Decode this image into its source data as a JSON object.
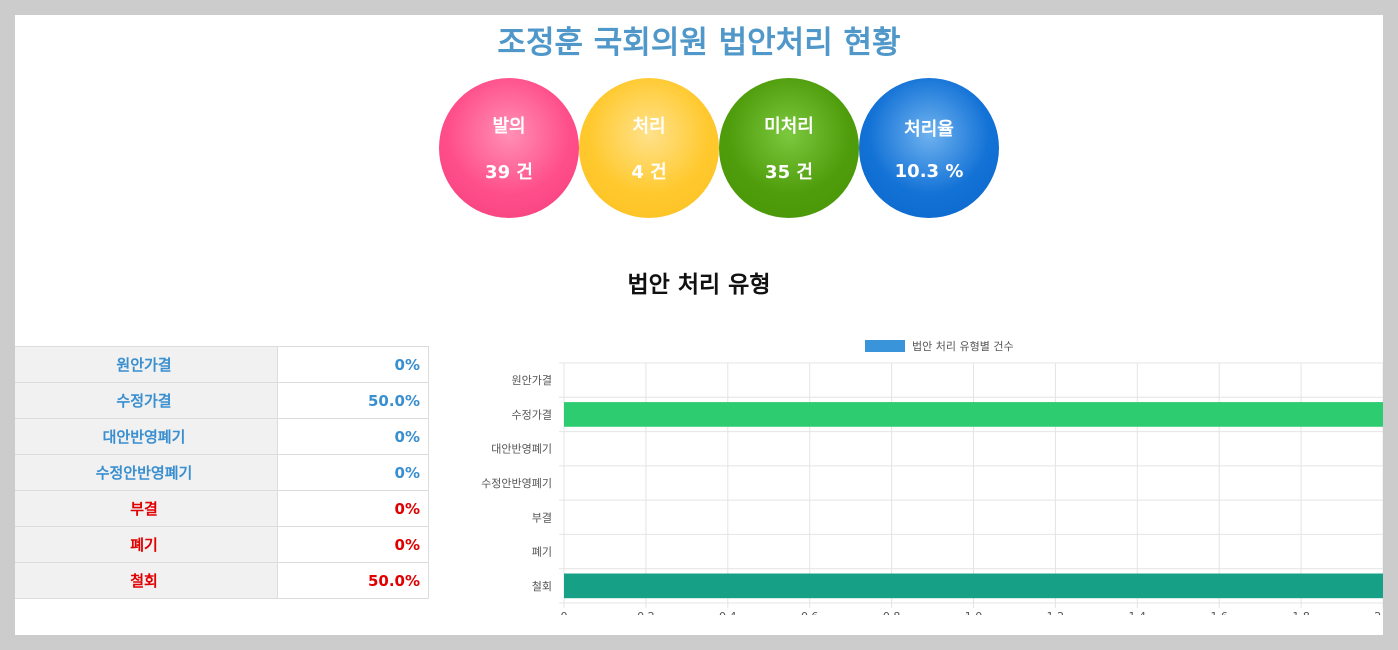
{
  "title": "조정훈 국회의원 법안처리 현황",
  "summary": [
    {
      "label": "발의",
      "value": "39 건",
      "color": "#ff4f8b"
    },
    {
      "label": "처리",
      "value": "4 건",
      "color": "#ffc92e"
    },
    {
      "label": "미처리",
      "value": "35 건",
      "color": "#4f9d0c"
    },
    {
      "label": "처리율",
      "value": "10.3 %",
      "color": "#1372d6"
    }
  ],
  "section_title": "법안 처리 유형",
  "table": [
    {
      "name": "원안가결",
      "pct": "0%",
      "tone": "blue"
    },
    {
      "name": "수정가결",
      "pct": "50.0%",
      "tone": "blue"
    },
    {
      "name": "대안반영폐기",
      "pct": "0%",
      "tone": "blue"
    },
    {
      "name": "수정안반영폐기",
      "pct": "0%",
      "tone": "blue"
    },
    {
      "name": "부결",
      "pct": "0%",
      "tone": "red"
    },
    {
      "name": "폐기",
      "pct": "0%",
      "tone": "red"
    },
    {
      "name": "철회",
      "pct": "50.0%",
      "tone": "red"
    }
  ],
  "chart_data": {
    "type": "bar",
    "orientation": "horizontal",
    "categories": [
      "원안가결",
      "수정가결",
      "대안반영폐기",
      "수정안반영폐기",
      "부결",
      "폐기",
      "철회"
    ],
    "series": [
      {
        "name": "법안 처리 유형별 건수",
        "values": [
          0,
          2,
          0,
          0,
          0,
          0,
          2
        ],
        "color": "#3a94da"
      }
    ],
    "bar_colors": [
      "#3a94da",
      "#2ecc71",
      "#3a94da",
      "#3a94da",
      "#3a94da",
      "#3a94da",
      "#16a085"
    ],
    "xlim": [
      0,
      2
    ],
    "xticks": [
      "0",
      "0.2",
      "0.4",
      "0.6",
      "0.8",
      "1.0",
      "1.2",
      "1.4",
      "1.6",
      "1.8",
      "2.0"
    ],
    "grid": true,
    "legend": "top"
  }
}
